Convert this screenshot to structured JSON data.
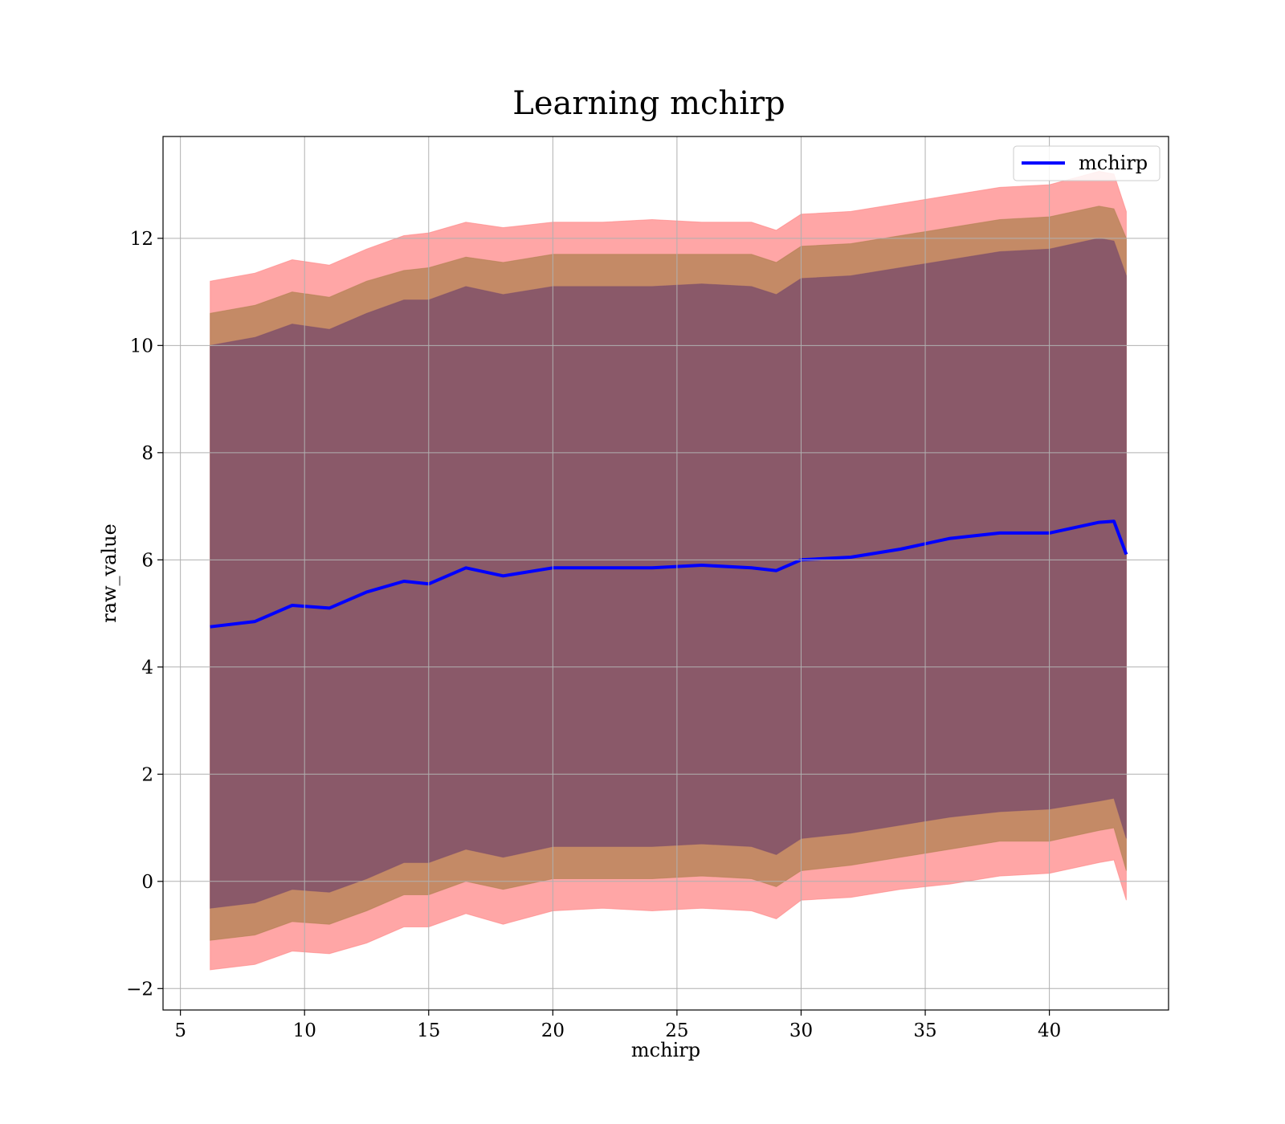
{
  "chart_data": {
    "type": "area",
    "title": "Learning mchirp",
    "xlabel": "mchirp",
    "ylabel": "raw_value",
    "xlim": [
      4.3,
      44.8
    ],
    "ylim": [
      -2.4,
      13.9
    ],
    "x_ticks": [
      5,
      10,
      15,
      20,
      25,
      30,
      35,
      40
    ],
    "x_tick_labels": [
      "5",
      "10",
      "15",
      "20",
      "25",
      "30",
      "35",
      "40"
    ],
    "y_ticks": [
      -2,
      0,
      2,
      4,
      6,
      8,
      10,
      12
    ],
    "y_tick_labels": [
      "−2",
      "0",
      "2",
      "4",
      "6",
      "8",
      "10",
      "12"
    ],
    "grid": true,
    "legend": {
      "location": "top-right",
      "entries": [
        "mchirp"
      ]
    },
    "x": [
      6.2,
      8,
      9.5,
      11,
      12.5,
      14,
      15,
      16.5,
      18,
      20,
      22,
      24,
      26,
      28,
      29,
      30,
      32,
      34,
      36,
      38,
      40,
      42,
      42.6,
      43.1
    ],
    "series": [
      {
        "name": "mchirp",
        "role": "line",
        "color": "#0000ff",
        "values": [
          4.75,
          4.85,
          5.15,
          5.1,
          5.4,
          5.6,
          5.55,
          5.85,
          5.7,
          5.85,
          5.85,
          5.85,
          5.9,
          5.85,
          5.8,
          6.0,
          6.05,
          6.2,
          6.4,
          6.5,
          6.5,
          6.7,
          6.72,
          6.1
        ]
      },
      {
        "role": "band-3sigma",
        "color": "#ff8080",
        "upper": [
          11.2,
          11.35,
          11.6,
          11.5,
          11.8,
          12.05,
          12.1,
          12.3,
          12.2,
          12.3,
          12.3,
          12.35,
          12.3,
          12.3,
          12.15,
          12.45,
          12.5,
          12.65,
          12.8,
          12.95,
          13.0,
          13.25,
          13.2,
          12.5
        ],
        "lower": [
          -1.65,
          -1.55,
          -1.3,
          -1.35,
          -1.15,
          -0.85,
          -0.85,
          -0.6,
          -0.8,
          -0.55,
          -0.5,
          -0.55,
          -0.5,
          -0.55,
          -0.7,
          -0.35,
          -0.3,
          -0.15,
          -0.05,
          0.1,
          0.15,
          0.35,
          0.4,
          -0.35
        ]
      },
      {
        "role": "band-2sigma",
        "color": "#b08050",
        "upper": [
          10.6,
          10.75,
          11.0,
          10.9,
          11.2,
          11.4,
          11.45,
          11.65,
          11.55,
          11.7,
          11.7,
          11.7,
          11.7,
          11.7,
          11.55,
          11.85,
          11.9,
          12.05,
          12.2,
          12.35,
          12.4,
          12.6,
          12.55,
          12.0
        ],
        "lower": [
          -1.1,
          -1.0,
          -0.75,
          -0.8,
          -0.55,
          -0.25,
          -0.25,
          0.0,
          -0.15,
          0.05,
          0.05,
          0.05,
          0.1,
          0.05,
          -0.1,
          0.2,
          0.3,
          0.45,
          0.6,
          0.75,
          0.75,
          0.95,
          1.0,
          0.2
        ]
      },
      {
        "role": "band-1sigma",
        "color": "#80506a",
        "upper": [
          10.0,
          10.15,
          10.4,
          10.3,
          10.6,
          10.85,
          10.85,
          11.1,
          10.95,
          11.1,
          11.1,
          11.1,
          11.15,
          11.1,
          10.95,
          11.25,
          11.3,
          11.45,
          11.6,
          11.75,
          11.8,
          12.0,
          11.95,
          11.3
        ],
        "lower": [
          -0.5,
          -0.4,
          -0.15,
          -0.2,
          0.05,
          0.35,
          0.35,
          0.6,
          0.45,
          0.65,
          0.65,
          0.65,
          0.7,
          0.65,
          0.5,
          0.8,
          0.9,
          1.05,
          1.2,
          1.3,
          1.35,
          1.5,
          1.55,
          0.8
        ]
      }
    ]
  }
}
